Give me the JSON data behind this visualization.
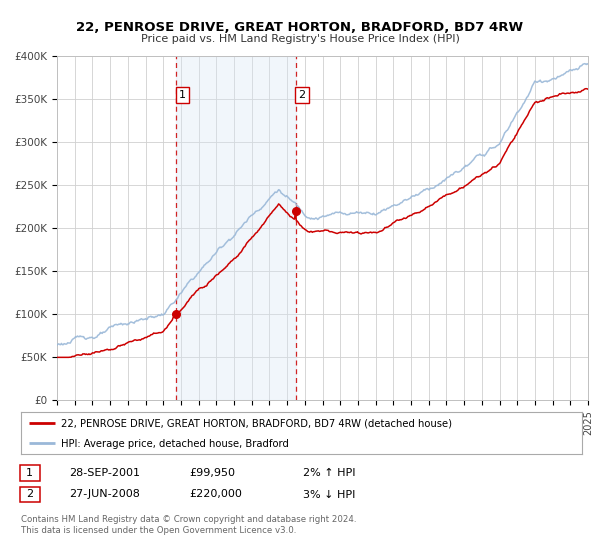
{
  "title": "22, PENROSE DRIVE, GREAT HORTON, BRADFORD, BD7 4RW",
  "subtitle": "Price paid vs. HM Land Registry's House Price Index (HPI)",
  "ylim": [
    0,
    400000
  ],
  "yticks": [
    0,
    50000,
    100000,
    150000,
    200000,
    250000,
    300000,
    350000,
    400000
  ],
  "ytick_labels": [
    "£0",
    "£50K",
    "£100K",
    "£150K",
    "£200K",
    "£250K",
    "£300K",
    "£350K",
    "£400K"
  ],
  "hpi_color": "#9ab8d8",
  "price_color": "#cc0000",
  "sale1_date": 2001.74,
  "sale1_price": 99950,
  "sale2_date": 2008.49,
  "sale2_price": 220000,
  "shade_color": "#d8e8f5",
  "legend_line1": "22, PENROSE DRIVE, GREAT HORTON, BRADFORD, BD7 4RW (detached house)",
  "legend_line2": "HPI: Average price, detached house, Bradford",
  "table_row1": [
    "1",
    "28-SEP-2001",
    "£99,950",
    "2% ↑ HPI"
  ],
  "table_row2": [
    "2",
    "27-JUN-2008",
    "£220,000",
    "3% ↓ HPI"
  ],
  "footnote1": "Contains HM Land Registry data © Crown copyright and database right 2024.",
  "footnote2": "This data is licensed under the Open Government Licence v3.0.",
  "background_color": "#ffffff"
}
